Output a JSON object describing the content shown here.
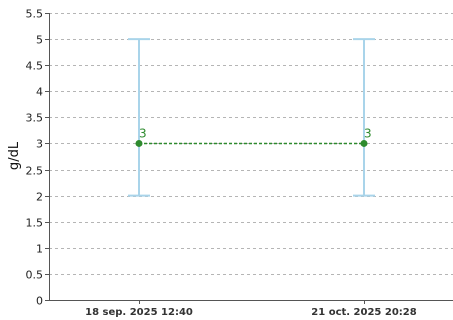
{
  "chart_data": {
    "type": "line",
    "title": "",
    "xlabel": "",
    "ylabel": "g/dL",
    "ylim": [
      0,
      5.5
    ],
    "y_ticks": [
      "0",
      "0.5",
      "1",
      "1.5",
      "2",
      "2.5",
      "3",
      "3.5",
      "4",
      "4.5",
      "5",
      "5.5"
    ],
    "y_tick_values": [
      0,
      0.5,
      1,
      1.5,
      2,
      2.5,
      3,
      3.5,
      4,
      4.5,
      5,
      5.5
    ],
    "categories": [
      "18 sep. 2025 12:40",
      "21 oct. 2025 20:28"
    ],
    "series": [
      {
        "values": [
          3,
          3
        ],
        "data_labels": [
          "3",
          "3"
        ],
        "color": "#2e8b2e",
        "line_style": "dotted"
      }
    ],
    "ranges": [
      {
        "low": 2,
        "high": 5
      },
      {
        "low": 2,
        "high": 5
      }
    ],
    "range_color": "#a9d4ea",
    "grid": true,
    "legend": "none"
  }
}
